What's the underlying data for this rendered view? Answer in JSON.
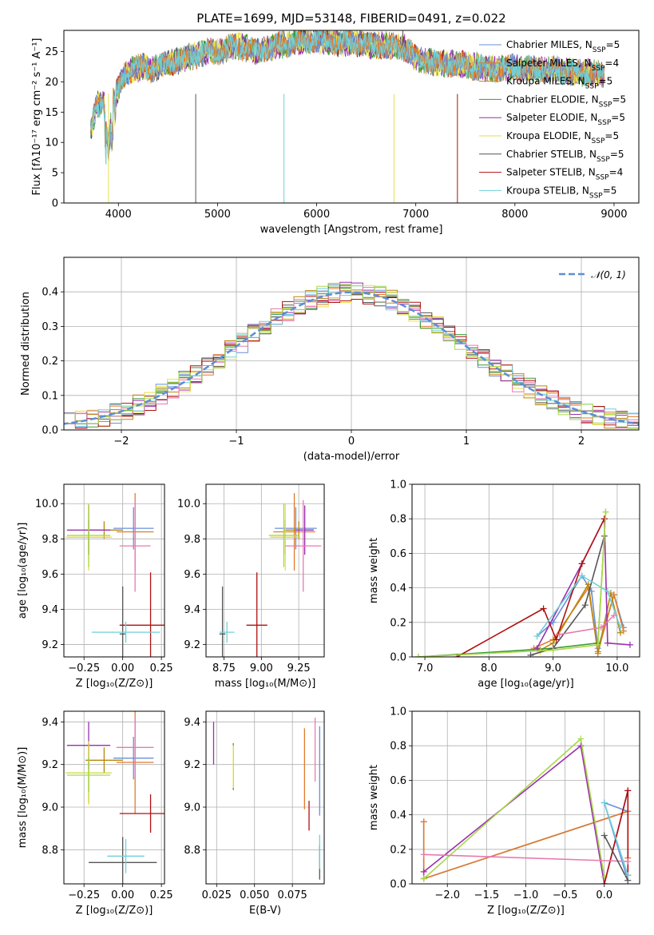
{
  "title": "PLATE=1699, MJD=53148, FIBERID=0491, z=0.022",
  "colors": [
    "#6a8fd8",
    "#e07b2a",
    "#b8860b",
    "#3a9a3a",
    "#9b2fae",
    "#e6e04a",
    "#555555",
    "#b01010",
    "#6fd0d8",
    "#e87ab0",
    "#a8d84a"
  ],
  "legend_spectrum": [
    "Chabrier MILES, N_SSP=5",
    "Salpeter MILES, N_SSP=4",
    "Kroupa MILES, N_SSP=5",
    "Chabrier ELODIE, N_SSP=5",
    "Salpeter ELODIE, N_SSP=5",
    "Kroupa ELODIE, N_SSP=5",
    "Chabrier STELIB, N_SSP=5",
    "Salpeter STELIB, N_SSP=4",
    "Kroupa STELIB, N_SSP=5"
  ],
  "legend_hist": "𝒩(0, 1)",
  "chart_data": [
    {
      "id": "spectrum",
      "type": "line",
      "xlabel": "wavelength [Angstrom, rest frame]",
      "ylabel": "Flux [fλ10⁻¹⁷ erg cm⁻² s⁻¹ A⁻¹]",
      "xlim": [
        3450,
        9250
      ],
      "ylim": [
        0,
        28.5
      ],
      "xticks": [
        4000,
        5000,
        6000,
        7000,
        8000,
        9000
      ],
      "yticks": [
        0,
        5,
        10,
        15,
        20,
        25
      ],
      "grid": false,
      "legend_position": "right",
      "envelope": {
        "x": [
          3720,
          3780,
          3850,
          3900,
          3950,
          4000,
          4050,
          4150,
          4250,
          4350,
          4500,
          4700,
          4900,
          5000,
          5200,
          5400,
          5600,
          5800,
          6000,
          6200,
          6400,
          6560,
          6700,
          6900,
          7000,
          7200,
          7400,
          7600,
          7800,
          8000,
          8200,
          8400,
          8600,
          8800,
          8900
        ],
        "y": [
          12,
          16,
          17,
          9,
          17,
          19,
          21,
          22,
          22.5,
          22,
          23,
          24,
          25,
          25,
          26,
          25,
          26,
          26.5,
          27,
          26.5,
          26.5,
          26,
          26,
          25.5,
          24,
          23,
          23,
          22.5,
          22,
          22.5,
          22,
          22,
          21.5,
          21.5,
          21
        ]
      }
    },
    {
      "id": "residual-histogram",
      "type": "step",
      "xlabel": "(data-model)/error",
      "ylabel": "Normed distribution",
      "xlim": [
        -2.5,
        2.5
      ],
      "ylim": [
        0,
        0.5
      ],
      "xticks": [
        -2,
        -1,
        0,
        1,
        2
      ],
      "yticks": [
        0.0,
        0.1,
        0.2,
        0.3,
        0.4
      ],
      "grid": true,
      "legend_position": "top-right",
      "series_count": 11
    },
    {
      "id": "age-vs-Z",
      "type": "errorbar",
      "xlabel": "Z [log₁₀(Z/Z⊙)]",
      "ylabel": "age  [log₁₀(age/yr)]",
      "xlim": [
        -0.38,
        0.27
      ],
      "ylim": [
        9.13,
        10.11
      ],
      "xticks": [
        -0.25,
        0.0,
        0.25
      ],
      "yticks": [
        9.2,
        9.4,
        9.6,
        9.8,
        10.0
      ],
      "grid": true,
      "points": [
        {
          "x": 0.07,
          "y": 9.86,
          "xerr": 0.13,
          "yerr": 0.12,
          "c": 0
        },
        {
          "x": 0.08,
          "y": 9.84,
          "xerr": 0.12,
          "yerr": 0.22,
          "c": 1
        },
        {
          "x": -0.12,
          "y": 9.85,
          "xerr": 0.12,
          "yerr": 0.05,
          "c": 2
        },
        {
          "x": -0.22,
          "y": 9.81,
          "xerr": 0.14,
          "yerr": 0.1,
          "c": 3
        },
        {
          "x": -0.22,
          "y": 9.85,
          "xerr": 0.14,
          "yerr": 0.14,
          "c": 4
        },
        {
          "x": -0.22,
          "y": 9.81,
          "xerr": 0.15,
          "yerr": 0.19,
          "c": 5
        },
        {
          "x": 0.0,
          "y": 9.26,
          "xerr": 0.02,
          "yerr": 0.27,
          "c": 6
        },
        {
          "x": 0.18,
          "y": 9.31,
          "xerr": 0.2,
          "yerr": 0.3,
          "c": 7
        },
        {
          "x": 0.02,
          "y": 9.27,
          "xerr": 0.22,
          "yerr": 0.06,
          "c": 8
        },
        {
          "x": 0.08,
          "y": 9.76,
          "xerr": 0.1,
          "yerr": 0.26,
          "c": 9
        },
        {
          "x": -0.22,
          "y": 9.82,
          "xerr": 0.14,
          "yerr": 0.18,
          "c": 10
        }
      ]
    },
    {
      "id": "age-vs-mass",
      "type": "errorbar",
      "xlabel": "mass [log₁₀(M/M⊙)]",
      "ylabel": "",
      "xlim": [
        8.63,
        9.42
      ],
      "ylim": [
        9.13,
        10.11
      ],
      "xticks": [
        8.75,
        9.0,
        9.25
      ],
      "yticks": [
        9.2,
        9.4,
        9.6,
        9.8,
        10.0
      ],
      "grid": true,
      "points": [
        {
          "x": 9.23,
          "y": 9.86,
          "xerr": 0.14,
          "yerr": 0.12,
          "c": 0
        },
        {
          "x": 9.22,
          "y": 9.84,
          "xerr": 0.14,
          "yerr": 0.22,
          "c": 1
        },
        {
          "x": 9.25,
          "y": 9.85,
          "xerr": 0.1,
          "yerr": 0.05,
          "c": 2
        },
        {
          "x": 9.16,
          "y": 9.81,
          "xerr": 0.1,
          "yerr": 0.1,
          "c": 3
        },
        {
          "x": 9.29,
          "y": 9.85,
          "xerr": 0.06,
          "yerr": 0.14,
          "c": 4
        },
        {
          "x": 9.16,
          "y": 9.81,
          "xerr": 0.1,
          "yerr": 0.19,
          "c": 5
        },
        {
          "x": 8.74,
          "y": 9.26,
          "xerr": 0.02,
          "yerr": 0.27,
          "c": 6
        },
        {
          "x": 8.97,
          "y": 9.31,
          "xerr": 0.07,
          "yerr": 0.3,
          "c": 7
        },
        {
          "x": 8.77,
          "y": 9.27,
          "xerr": 0.05,
          "yerr": 0.06,
          "c": 8
        },
        {
          "x": 9.28,
          "y": 9.76,
          "xerr": 0.12,
          "yerr": 0.26,
          "c": 9
        },
        {
          "x": 9.15,
          "y": 9.82,
          "xerr": 0.1,
          "yerr": 0.18,
          "c": 10
        }
      ]
    },
    {
      "id": "mass-weight-vs-age",
      "type": "line",
      "xlabel": "age  [log₁₀(age/yr)]",
      "ylabel": "mass weight",
      "xlim": [
        6.8,
        10.35
      ],
      "ylim": [
        0,
        1.0
      ],
      "xticks": [
        7,
        8,
        9,
        10
      ],
      "yticks": [
        0.0,
        0.2,
        0.4,
        0.6,
        0.8,
        1.0
      ],
      "grid": true,
      "series": [
        {
          "c": 0,
          "x": [
            8.75,
            9.0,
            9.45,
            9.6,
            9.7,
            9.95,
            10.1
          ],
          "y": [
            0.12,
            0.2,
            0.47,
            0.38,
            0.05,
            0.36,
            0.17
          ]
        },
        {
          "c": 1,
          "x": [
            8.7,
            9.0,
            9.55,
            9.7,
            9.95,
            10.1
          ],
          "y": [
            0.05,
            0.1,
            0.4,
            0.03,
            0.36,
            0.15
          ]
        },
        {
          "c": 2,
          "x": [
            8.8,
            9.0,
            9.55,
            9.7,
            9.9,
            10.05
          ],
          "y": [
            0.04,
            0.08,
            0.42,
            0.02,
            0.37,
            0.14
          ]
        },
        {
          "c": 3,
          "x": [
            6.9,
            9.0,
            9.7,
            9.82
          ],
          "y": [
            0.0,
            0.05,
            0.08,
            0.84
          ]
        },
        {
          "c": 4,
          "x": [
            8.75,
            9.45,
            9.8,
            9.85,
            10.2
          ],
          "y": [
            0.05,
            0.54,
            0.8,
            0.08,
            0.07
          ]
        },
        {
          "c": 5,
          "x": [
            8.8,
            9.7,
            9.82
          ],
          "y": [
            0.03,
            0.07,
            0.84
          ]
        },
        {
          "c": 6,
          "x": [
            8.65,
            9.0,
            9.5,
            9.8
          ],
          "y": [
            0.01,
            0.05,
            0.3,
            0.7
          ]
        },
        {
          "c": 7,
          "x": [
            7.5,
            8.85,
            9.05,
            9.45,
            9.8
          ],
          "y": [
            0.0,
            0.28,
            0.1,
            0.54,
            0.8
          ]
        },
        {
          "c": 8,
          "x": [
            8.75,
            9.45,
            9.85,
            10.05
          ],
          "y": [
            0.12,
            0.47,
            0.38,
            0.17
          ]
        },
        {
          "c": 9,
          "x": [
            9.1,
            9.75,
            9.95
          ],
          "y": [
            0.13,
            0.17,
            0.24
          ]
        },
        {
          "c": 10,
          "x": [
            6.9,
            9.0,
            9.7,
            9.82
          ],
          "y": [
            0.0,
            0.04,
            0.07,
            0.84
          ]
        }
      ]
    },
    {
      "id": "mass-vs-Z",
      "type": "errorbar",
      "xlabel": "Z [log₁₀(Z/Z⊙)]",
      "ylabel": "mass [log₁₀(M/M⊙)]",
      "xlim": [
        -0.38,
        0.27
      ],
      "ylim": [
        8.64,
        9.45
      ],
      "xticks": [
        -0.25,
        0.0,
        0.25
      ],
      "yticks": [
        8.8,
        9.0,
        9.2,
        9.4
      ],
      "grid": true,
      "points": [
        {
          "x": 0.07,
          "y": 9.23,
          "xerr": 0.13,
          "yerr": 0.1,
          "c": 0
        },
        {
          "x": 0.08,
          "y": 9.21,
          "xerr": 0.12,
          "yerr": 0.24,
          "c": 1
        },
        {
          "x": -0.12,
          "y": 9.22,
          "xerr": 0.12,
          "yerr": 0.06,
          "c": 2
        },
        {
          "x": -0.22,
          "y": 9.16,
          "xerr": 0.14,
          "yerr": 0.14,
          "c": 3
        },
        {
          "x": -0.22,
          "y": 9.29,
          "xerr": 0.14,
          "yerr": 0.11,
          "c": 4
        },
        {
          "x": -0.22,
          "y": 9.16,
          "xerr": 0.15,
          "yerr": 0.15,
          "c": 5
        },
        {
          "x": 0.0,
          "y": 8.74,
          "xerr": 0.22,
          "yerr": 0.12,
          "c": 6
        },
        {
          "x": 0.18,
          "y": 8.97,
          "xerr": 0.2,
          "yerr": 0.09,
          "c": 7
        },
        {
          "x": 0.02,
          "y": 8.77,
          "xerr": 0.12,
          "yerr": 0.08,
          "c": 8
        },
        {
          "x": 0.08,
          "y": 9.28,
          "xerr": 0.12,
          "yerr": 0.14,
          "c": 9
        },
        {
          "x": -0.22,
          "y": 9.15,
          "xerr": 0.14,
          "yerr": 0.08,
          "c": 10
        }
      ]
    },
    {
      "id": "mass-vs-EBV",
      "type": "errorbar",
      "xlabel": "E(B-V)",
      "ylabel": "",
      "xlim": [
        0.018,
        0.096
      ],
      "ylim": [
        8.64,
        9.45
      ],
      "xticks": [
        0.025,
        0.05,
        0.075
      ],
      "yticks": [
        8.8,
        9.0,
        9.2,
        9.4
      ],
      "grid": true,
      "points": [
        {
          "x": 0.093,
          "y": 9.17,
          "xerr": 0,
          "yerr": 0.21,
          "c": 0
        },
        {
          "x": 0.083,
          "y": 9.18,
          "xerr": 0,
          "yerr": 0.19,
          "c": 1
        },
        {
          "x": 0.036,
          "y": 9.19,
          "xerr": 0,
          "yerr": 0.11,
          "c": 3
        },
        {
          "x": 0.023,
          "y": 9.3,
          "xerr": 0,
          "yerr": 0.1,
          "c": 4
        },
        {
          "x": 0.036,
          "y": 9.19,
          "xerr": 0,
          "yerr": 0.1,
          "c": 5
        },
        {
          "x": 0.093,
          "y": 8.74,
          "xerr": 0,
          "yerr": 0.08,
          "c": 6
        },
        {
          "x": 0.086,
          "y": 8.96,
          "xerr": 0,
          "yerr": 0.07,
          "c": 7
        },
        {
          "x": 0.093,
          "y": 8.79,
          "xerr": 0,
          "yerr": 0.08,
          "c": 8
        },
        {
          "x": 0.09,
          "y": 9.27,
          "xerr": 0,
          "yerr": 0.15,
          "c": 9
        }
      ]
    },
    {
      "id": "mass-weight-vs-Z",
      "type": "line",
      "xlabel": "Z [log₁₀(Z/Z⊙)]",
      "ylabel": "mass weight",
      "xlim": [
        -2.45,
        0.45
      ],
      "ylim": [
        0,
        1.0
      ],
      "xticks": [
        -2.0,
        -1.5,
        -1.0,
        -0.5,
        0.0
      ],
      "yticks": [
        0.0,
        0.2,
        0.4,
        0.6,
        0.8,
        1.0
      ],
      "grid": true,
      "series": [
        {
          "c": 0,
          "x": [
            -2.3,
            -2.3,
            0.3,
            0.0,
            0.3
          ],
          "y": [
            0.36,
            0.03,
            0.42,
            0.47,
            0.02
          ]
        },
        {
          "c": 1,
          "x": [
            -2.3,
            -2.3,
            0.3,
            0.3
          ],
          "y": [
            0.36,
            0.03,
            0.42,
            0.15
          ]
        },
        {
          "c": 4,
          "x": [
            -2.3,
            -0.3,
            0.0,
            0.3
          ],
          "y": [
            0.07,
            0.8,
            0.0,
            0.54
          ]
        },
        {
          "c": 10,
          "x": [
            -2.3,
            -0.3,
            0.0
          ],
          "y": [
            0.03,
            0.84,
            0.04
          ]
        },
        {
          "c": 7,
          "x": [
            0.0,
            0.3,
            0.3
          ],
          "y": [
            0.0,
            0.54,
            0.05
          ]
        },
        {
          "c": 9,
          "x": [
            -2.3,
            0.3
          ],
          "y": [
            0.17,
            0.13
          ]
        },
        {
          "c": 6,
          "x": [
            0.0,
            0.3
          ],
          "y": [
            0.28,
            0.02
          ]
        },
        {
          "c": 8,
          "x": [
            0.0,
            0.3
          ],
          "y": [
            0.47,
            0.05
          ]
        }
      ]
    }
  ]
}
